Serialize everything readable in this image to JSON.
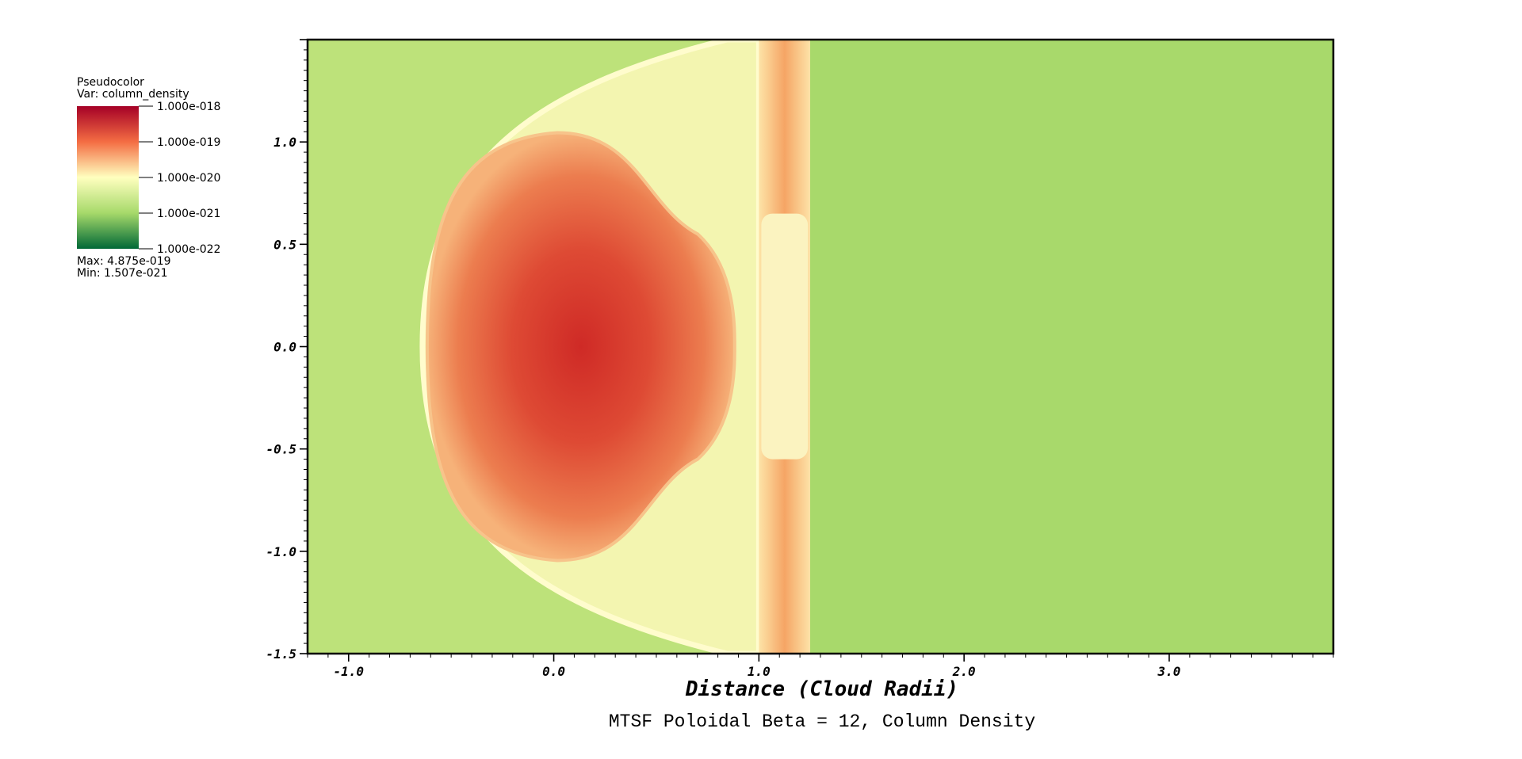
{
  "chart_data": {
    "type": "heatmap",
    "title": "MTSF Poloidal Beta = 12, Column Density",
    "xlabel": "Distance (Cloud Radii)",
    "ylabel": "",
    "xlim": [
      -1.2,
      3.8
    ],
    "ylim": [
      -1.5,
      1.5
    ],
    "x_ticks": [
      "-1.0",
      "0.0",
      "1.0",
      "2.0",
      "3.0"
    ],
    "x_tick_values": [
      -1,
      0,
      1,
      2,
      3
    ],
    "y_ticks": [
      "1.0",
      "0.5",
      "0.0",
      "-0.5",
      "-1.0",
      "-1.5"
    ],
    "y_tick_values": [
      1.0,
      0.5,
      0.0,
      -0.5,
      -1.0,
      -1.5
    ],
    "field": {
      "bow_shock_apex_x": -0.64,
      "cloud_center": [
        0.0,
        0.0
      ],
      "cloud_radius_x": 0.9,
      "cloud_radius_y": 1.1,
      "band_x_range": [
        1.0,
        1.25
      ],
      "downstream_start_x": 1.25
    },
    "legend": {
      "plot_type": "Pseudocolor",
      "var": "Var: column_density",
      "scale": "log",
      "labels": [
        "1.000e-018",
        "1.000e-019",
        "1.000e-020",
        "1.000e-021",
        "1.000e-022"
      ],
      "max": "Max:  4.875e-019",
      "min": "Min:  1.507e-021",
      "colors": [
        "#a50026",
        "#f46d43",
        "#ffffbf",
        "#a6d96a",
        "#006837"
      ]
    }
  }
}
